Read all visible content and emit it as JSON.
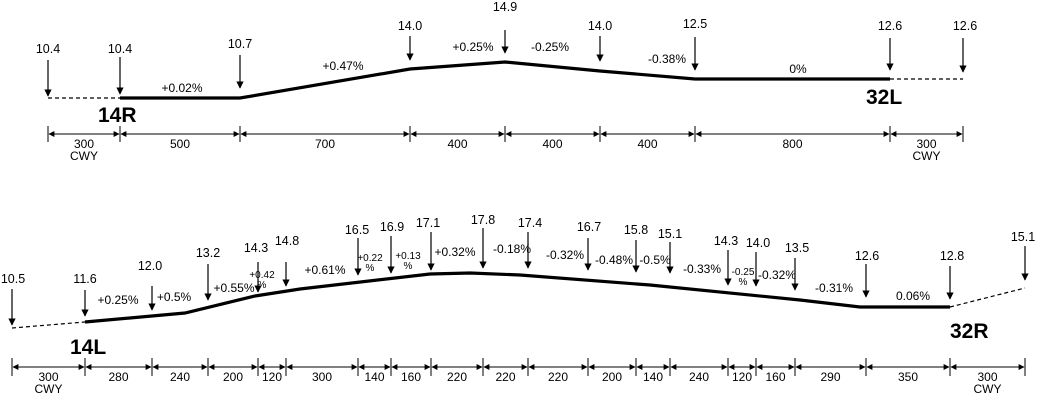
{
  "runways": [
    {
      "id": "upper",
      "start_label": "14R",
      "end_label": "32L",
      "elevations": [
        "10.4",
        "10.4",
        "10.7",
        "14.0",
        "14.9",
        "14.0",
        "12.5",
        "12.6",
        "12.6"
      ],
      "gradients": [
        "+0.02%",
        "+0.47%",
        "+0.25%",
        "-0.25%",
        "-0.38%",
        "0%"
      ],
      "distances": [
        "300",
        "500",
        "700",
        "400",
        "400",
        "400",
        "800",
        "300"
      ],
      "cwy_label": "CWY"
    },
    {
      "id": "lower",
      "start_label": "14L",
      "end_label": "32R",
      "elevations": [
        "10.5",
        "11.6",
        "12.0",
        "13.2",
        "14.3",
        "14.8",
        "16.5",
        "16.9",
        "17.1",
        "17.8",
        "17.4",
        "16.7",
        "15.8",
        "15.1",
        "14.3",
        "14.0",
        "13.5",
        "12.6",
        "12.8",
        "15.1"
      ],
      "gradients": [
        "+0.25%",
        "+0.5%",
        "+0.55%",
        "+0.42 %",
        "+0.61%",
        "+0.22 %",
        "+0.13 %",
        "+0.32%",
        "-0.18%",
        "-0.32%",
        "-0.48%",
        "-0.5%",
        "-0.33%",
        "-0.25 %",
        "-0.32%",
        "-0.31%",
        "0.06%"
      ],
      "distances": [
        "300",
        "280",
        "240",
        "200",
        "120",
        "300",
        "140",
        "160",
        "220",
        "220",
        "220",
        "200",
        "140",
        "240",
        "120",
        "160",
        "290",
        "350",
        "300"
      ],
      "cwy_label": "CWY"
    }
  ]
}
